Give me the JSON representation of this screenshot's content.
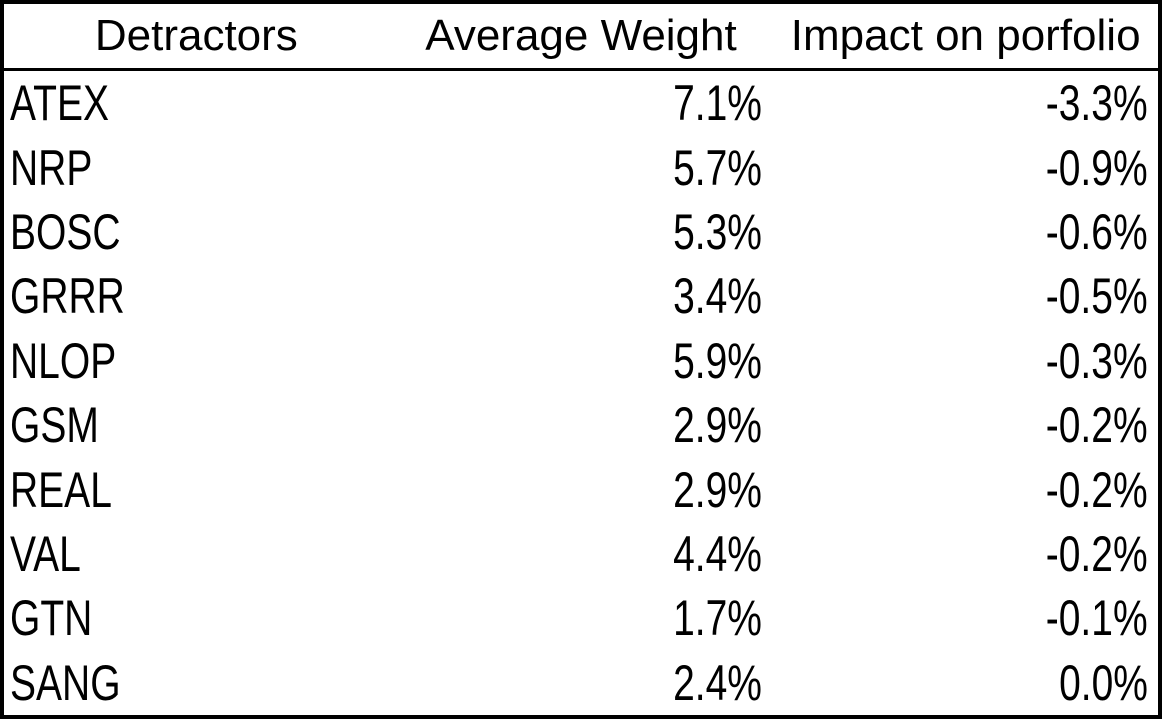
{
  "table": {
    "header": {
      "detractors": "Detractors",
      "average_weight": "Average Weight",
      "impact": "Impact on porfolio"
    },
    "rows": [
      {
        "ticker": "ATEX",
        "average_weight": "7.1%",
        "impact": "-3.3%"
      },
      {
        "ticker": "NRP",
        "average_weight": "5.7%",
        "impact": "-0.9%"
      },
      {
        "ticker": "BOSC",
        "average_weight": "5.3%",
        "impact": "-0.6%"
      },
      {
        "ticker": "GRRR",
        "average_weight": "3.4%",
        "impact": "-0.5%"
      },
      {
        "ticker": "NLOP",
        "average_weight": "5.9%",
        "impact": "-0.3%"
      },
      {
        "ticker": "GSM",
        "average_weight": "2.9%",
        "impact": "-0.2%"
      },
      {
        "ticker": "REAL",
        "average_weight": "2.9%",
        "impact": "-0.2%"
      },
      {
        "ticker": "VAL",
        "average_weight": "4.4%",
        "impact": "-0.2%"
      },
      {
        "ticker": "GTN",
        "average_weight": "1.7%",
        "impact": "-0.1%"
      },
      {
        "ticker": "SANG",
        "average_weight": "2.4%",
        "impact": "0.0%"
      }
    ]
  },
  "colors": {
    "border": "#000000",
    "text": "#000000",
    "background": "#ffffff"
  },
  "chart_data": {
    "type": "table",
    "title": "",
    "columns": [
      "Detractors",
      "Average Weight",
      "Impact on porfolio"
    ],
    "rows": [
      [
        "ATEX",
        7.1,
        -3.3
      ],
      [
        "NRP",
        5.7,
        -0.9
      ],
      [
        "BOSC",
        5.3,
        -0.6
      ],
      [
        "GRRR",
        3.4,
        -0.5
      ],
      [
        "NLOP",
        5.9,
        -0.3
      ],
      [
        "GSM",
        2.9,
        -0.2
      ],
      [
        "REAL",
        2.9,
        -0.2
      ],
      [
        "VAL",
        4.4,
        -0.2
      ],
      [
        "GTN",
        1.7,
        -0.1
      ],
      [
        "SANG",
        2.4,
        0.0
      ]
    ],
    "units": "percent"
  }
}
